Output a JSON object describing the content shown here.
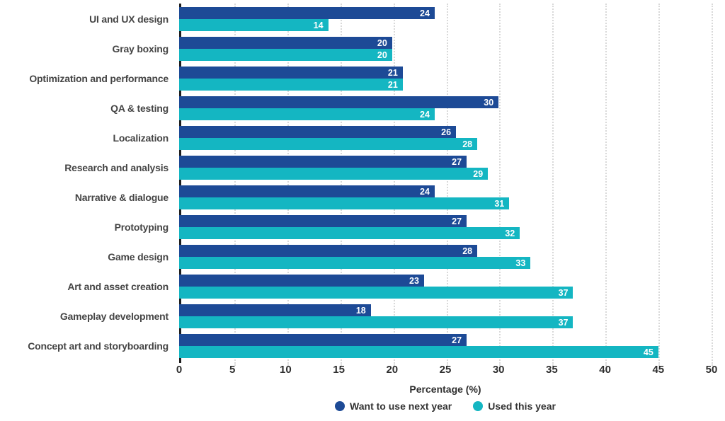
{
  "chart_data": {
    "type": "bar",
    "orientation": "horizontal",
    "categories": [
      "UI and UX design",
      "Gray boxing",
      "Optimization and performance",
      "QA & testing",
      "Localization",
      "Research and analysis",
      "Narrative & dialogue",
      "Prototyping",
      "Game design",
      "Art and asset creation",
      "Gameplay development",
      "Concept art and storyboarding"
    ],
    "series": [
      {
        "name": "Want to use next year",
        "color": "#1d4a96",
        "values": [
          24,
          20,
          21,
          30,
          26,
          27,
          24,
          27,
          28,
          23,
          18,
          27
        ]
      },
      {
        "name": "Used this year",
        "color": "#14b6c2",
        "values": [
          14,
          20,
          21,
          24,
          28,
          29,
          31,
          32,
          33,
          37,
          37,
          45
        ]
      }
    ],
    "title": "",
    "xlabel": "Percentage (%)",
    "ylabel": "",
    "xlim": [
      0,
      50
    ],
    "xticks": [
      0,
      5,
      10,
      15,
      20,
      25,
      30,
      35,
      40,
      45,
      50
    ],
    "grid": "vertical-dotted",
    "grid_color": "#d9d9d9",
    "axis_line_color": "#1f1f1f",
    "value_label_color": "#ffffff",
    "legend_position": "bottom"
  }
}
